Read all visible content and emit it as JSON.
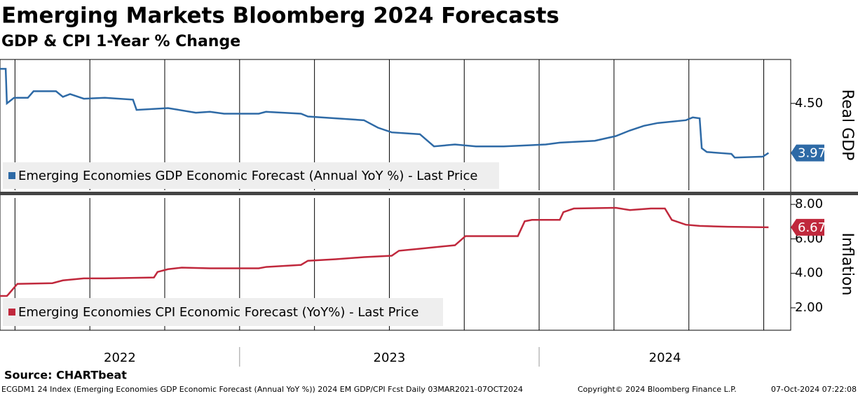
{
  "header": {
    "title": "Emerging Markets Bloomberg 2024 Forecasts",
    "subtitle": "GDP & CPI 1-Year % Change"
  },
  "chart_data": [
    {
      "type": "line",
      "y_label": "Real GDP",
      "xgrid": "quarterly",
      "xlim": [
        2022.2,
        2024.84
      ],
      "ylim": [
        3.57,
        4.97
      ],
      "yticks": [
        {
          "value": 4.5,
          "label": "4.50"
        }
      ],
      "x": [
        2022.2,
        2022.219,
        2022.223,
        2022.247,
        2022.293,
        2022.312,
        2022.387,
        2022.41,
        2022.434,
        2022.48,
        2022.55,
        2022.644,
        2022.656,
        2022.761,
        2022.854,
        2022.901,
        2022.948,
        2023.064,
        2023.088,
        2023.205,
        2023.228,
        2023.415,
        2023.462,
        2023.508,
        2023.602,
        2023.649,
        2023.719,
        2023.789,
        2023.882,
        2024.022,
        2024.069,
        2024.186,
        2024.256,
        2024.303,
        2024.35,
        2024.396,
        2024.49,
        2024.513,
        2024.536,
        2024.543,
        2024.56,
        2024.642,
        2024.653,
        2024.747,
        2024.766
      ],
      "series": [
        {
          "name": "Emerging Economies GDP Economic Forecast (Annual YoY %) - Last Price",
          "color": "#2e6aa6",
          "values": [
            4.87,
            4.87,
            4.5,
            4.56,
            4.56,
            4.63,
            4.63,
            4.57,
            4.6,
            4.55,
            4.56,
            4.54,
            4.43,
            4.45,
            4.4,
            4.41,
            4.39,
            4.39,
            4.41,
            4.39,
            4.36,
            4.32,
            4.24,
            4.19,
            4.17,
            4.04,
            4.06,
            4.04,
            4.04,
            4.06,
            4.08,
            4.1,
            4.15,
            4.21,
            4.26,
            4.29,
            4.32,
            4.35,
            4.34,
            4.02,
            3.98,
            3.96,
            3.92,
            3.93,
            3.97
          ]
        }
      ]
    },
    {
      "type": "line",
      "y_label": "Inflation",
      "xgrid": "quarterly",
      "xlim": [
        2022.2,
        2024.84
      ],
      "xticks": [
        2022,
        2023,
        2024
      ],
      "ylim": [
        0.7,
        8.37
      ],
      "yticks": [
        {
          "value": 2,
          "label": "2.00"
        },
        {
          "value": 4,
          "label": "4.00"
        },
        {
          "value": 6,
          "label": "6.00"
        },
        {
          "value": 8,
          "label": "8.00"
        }
      ],
      "x": [
        2022.2,
        2022.223,
        2022.228,
        2022.258,
        2022.375,
        2022.41,
        2022.48,
        2022.55,
        2022.714,
        2022.726,
        2022.761,
        2022.807,
        2022.901,
        2023.064,
        2023.088,
        2023.205,
        2023.228,
        2023.321,
        2023.415,
        2023.508,
        2023.532,
        2023.602,
        2023.719,
        2023.754,
        2023.836,
        2023.929,
        2023.952,
        2023.976,
        2024.069,
        2024.081,
        2024.116,
        2024.256,
        2024.303,
        2024.373,
        2024.42,
        2024.443,
        2024.49,
        2024.536,
        2024.63,
        2024.766
      ],
      "series": [
        {
          "name": "Emerging Economies CPI Economic Forecast (YoY%) - Last Price",
          "color": "#c0283c",
          "values": [
            2.69,
            2.69,
            2.78,
            3.39,
            3.43,
            3.59,
            3.71,
            3.71,
            3.76,
            4.08,
            4.24,
            4.33,
            4.29,
            4.29,
            4.37,
            4.49,
            4.73,
            4.82,
            4.94,
            5.02,
            5.31,
            5.43,
            5.63,
            6.16,
            6.16,
            6.16,
            7.02,
            7.1,
            7.1,
            7.55,
            7.76,
            7.8,
            7.67,
            7.76,
            7.76,
            7.1,
            6.82,
            6.75,
            6.7,
            6.67
          ]
        }
      ]
    }
  ],
  "source": "Source: CHARTbeat",
  "footer": {
    "index": "ECGDM1 24 Index (Emerging Economies GDP Economic Forecast (Annual YoY %)) 2024 EM GDP/CPI Fcst  Daily 03MAR2021-07OCT2024",
    "copyright": "Copyright© 2024 Bloomberg Finance L.P.",
    "timestamp": "07-Oct-2024 07:22:08"
  }
}
